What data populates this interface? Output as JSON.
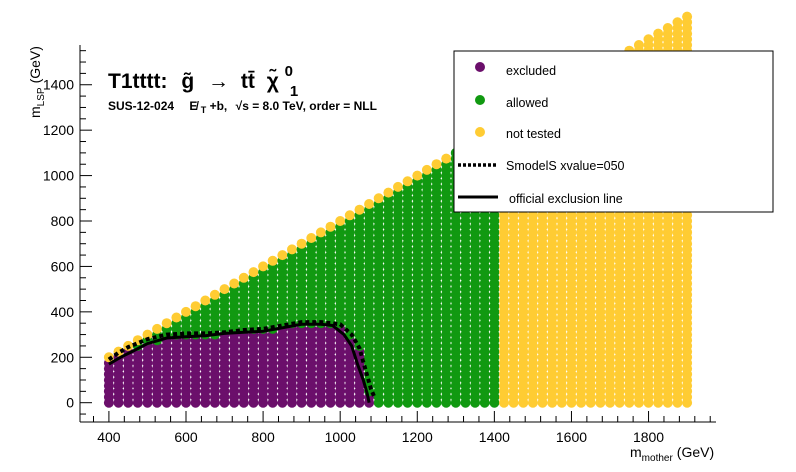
{
  "chart_data": {
    "type": "scatter",
    "title": "T1tttt: g̃ → tt̄ χ̃₁⁰",
    "title_parts": {
      "model": "T1tttt:",
      "mother": "g̃",
      "arrow": "→",
      "products": "tt̄",
      "lsp": "χ̃",
      "lsp_sup": "0",
      "lsp_sub": "1"
    },
    "subtitle": "SUS-12-024   E̸T+b,  √s =  8.0 TeV, order =  NLL",
    "subtitle_parts": {
      "analysis": "SUS-12-024",
      "met": "E̸",
      "met_sub": "T",
      "met_suffix": "+b,",
      "sqrt_s": "√s =  8.0 TeV, order =  NLL"
    },
    "xlabel": "m",
    "xlabel_sub": "mother",
    "xlabel_unit": "(GeV)",
    "ylabel": "m",
    "ylabel_sub": "LSP",
    "ylabel_unit": "(GeV)",
    "xlim": [
      325,
      1975
    ],
    "ylim": [
      -85,
      1575
    ],
    "x_ticks": [
      400,
      600,
      800,
      1000,
      1200,
      1400,
      1600,
      1800
    ],
    "y_ticks": [
      0,
      200,
      400,
      600,
      800,
      1000,
      1200,
      1400
    ],
    "grid": false,
    "legend_position": "top-right",
    "grid_points": {
      "x_start": 400,
      "x_end": 1900,
      "x_step": 25,
      "y_start": 0,
      "y_step": 25,
      "lsp_below_mother_by": 200,
      "excluded_max_x": 1075,
      "allowed_max_x": 1400,
      "excluded_y_max_by_x": [
        [
          400,
          175
        ],
        [
          450,
          225
        ],
        [
          500,
          260
        ],
        [
          550,
          285
        ],
        [
          600,
          290
        ],
        [
          700,
          300
        ],
        [
          800,
          315
        ],
        [
          850,
          325
        ],
        [
          900,
          340
        ],
        [
          950,
          345
        ],
        [
          1000,
          325
        ],
        [
          1050,
          245
        ],
        [
          1075,
          30
        ]
      ],
      "boundary_not_tested_width": 40
    },
    "series": [
      {
        "name": "excluded",
        "color": "#6b0f6b",
        "marker": "circle"
      },
      {
        "name": "allowed",
        "color": "#119911",
        "marker": "circle"
      },
      {
        "name": "not tested",
        "color": "#ffcc33",
        "marker": "circle"
      },
      {
        "name": "SmodelS xvalue=050",
        "color": "#000000",
        "style": "dotted",
        "x": [
          400,
          425,
          450,
          500,
          550,
          600,
          650,
          700,
          750,
          800,
          850,
          900,
          950,
          1000,
          1030,
          1050,
          1065,
          1080,
          1090
        ],
        "y": [
          190,
          220,
          245,
          280,
          300,
          305,
          305,
          310,
          320,
          325,
          340,
          355,
          355,
          345,
          300,
          240,
          150,
          60,
          20
        ]
      },
      {
        "name": "official exclusion line",
        "color": "#000000",
        "style": "solid",
        "x": [
          400,
          430,
          460,
          500,
          550,
          600,
          650,
          700,
          750,
          800,
          850,
          900,
          950,
          980,
          1010,
          1030,
          1045,
          1060,
          1070,
          1075
        ],
        "y": [
          170,
          200,
          225,
          260,
          285,
          290,
          295,
          305,
          310,
          315,
          330,
          345,
          345,
          340,
          300,
          250,
          170,
          100,
          40,
          0
        ]
      }
    ]
  }
}
